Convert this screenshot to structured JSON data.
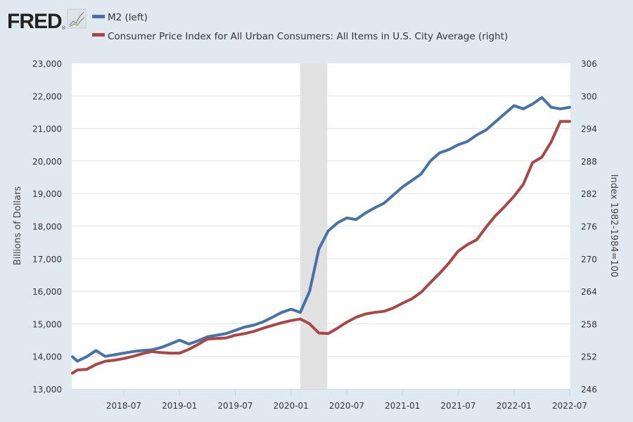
{
  "logo": {
    "text": "FRED",
    "registered": "®"
  },
  "colors": {
    "m2": "#4572a7",
    "cpi": "#aa4643",
    "background": "#e1e9f0",
    "plot": "#ffffff",
    "grid": "#e6e6e6",
    "recession": "#e1e1e1"
  },
  "chart_data": {
    "type": "line",
    "title": "",
    "legend_position": "top-left",
    "grid": true,
    "xlabel": "",
    "x_ticks": [
      "2018-07",
      "2019-01",
      "2019-07",
      "2020-01",
      "2020-07",
      "2021-01",
      "2021-07",
      "2022-01",
      "2022-07"
    ],
    "xlim": [
      "2018-01",
      "2022-07"
    ],
    "recession": {
      "start": "2020-02",
      "end": "2020-04"
    },
    "left_axis": {
      "label": "Billions of Dollars",
      "ylim": [
        13000,
        23000
      ],
      "ticks": [
        "13,000",
        "14,000",
        "15,000",
        "16,000",
        "17,000",
        "18,000",
        "19,000",
        "20,000",
        "21,000",
        "22,000",
        "23,000"
      ]
    },
    "right_axis": {
      "label": "Index 1982-1984=100",
      "ylim": [
        246,
        306
      ],
      "ticks": [
        "246",
        "252",
        "258",
        "264",
        "270",
        "276",
        "282",
        "288",
        "294",
        "300",
        "306"
      ]
    },
    "series": [
      {
        "name": "M2 (left)",
        "axis": "left",
        "color": "#4572a7",
        "x": [
          "2018-01",
          "2018-02",
          "2018-03",
          "2018-04",
          "2018-05",
          "2018-06",
          "2018-07",
          "2018-08",
          "2018-09",
          "2018-10",
          "2018-11",
          "2018-12",
          "2019-01",
          "2019-02",
          "2019-03",
          "2019-04",
          "2019-05",
          "2019-06",
          "2019-07",
          "2019-08",
          "2019-09",
          "2019-10",
          "2019-11",
          "2019-12",
          "2020-01",
          "2020-02",
          "2020-03",
          "2020-04",
          "2020-05",
          "2020-06",
          "2020-07",
          "2020-08",
          "2020-09",
          "2020-10",
          "2020-11",
          "2020-12",
          "2021-01",
          "2021-02",
          "2021-03",
          "2021-04",
          "2021-05",
          "2021-06",
          "2021-07",
          "2021-08",
          "2021-09",
          "2021-10",
          "2021-11",
          "2021-12",
          "2022-01",
          "2022-02",
          "2022-03",
          "2022-04",
          "2022-05",
          "2022-06",
          "2022-07"
        ],
        "values": [
          13990,
          13850,
          13990,
          14180,
          14000,
          14050,
          14100,
          14150,
          14180,
          14200,
          14270,
          14380,
          14500,
          14380,
          14480,
          14600,
          14650,
          14700,
          14800,
          14900,
          14960,
          15060,
          15200,
          15350,
          15450,
          15350,
          16000,
          17300,
          17850,
          18100,
          18250,
          18200,
          18400,
          18560,
          18700,
          18950,
          19200,
          19400,
          19600,
          20000,
          20250,
          20350,
          20500,
          20600,
          20800,
          20950,
          21200,
          21450,
          21700,
          21600,
          21750,
          21950,
          21650,
          21600,
          21650
        ]
      },
      {
        "name": "Consumer Price Index for All Urban Consumers: All Items in U.S. City Average (right)",
        "axis": "right",
        "color": "#aa4643",
        "x": [
          "2018-01",
          "2018-02",
          "2018-03",
          "2018-04",
          "2018-05",
          "2018-06",
          "2018-07",
          "2018-08",
          "2018-09",
          "2018-10",
          "2018-11",
          "2018-12",
          "2019-01",
          "2019-02",
          "2019-03",
          "2019-04",
          "2019-05",
          "2019-06",
          "2019-07",
          "2019-08",
          "2019-09",
          "2019-10",
          "2019-11",
          "2019-12",
          "2020-01",
          "2020-02",
          "2020-03",
          "2020-04",
          "2020-05",
          "2020-06",
          "2020-07",
          "2020-08",
          "2020-09",
          "2020-10",
          "2020-11",
          "2020-12",
          "2021-01",
          "2021-02",
          "2021-03",
          "2021-04",
          "2021-05",
          "2021-06",
          "2021-07",
          "2021-08",
          "2021-09",
          "2021-10",
          "2021-11",
          "2021-12",
          "2022-01",
          "2022-02",
          "2022-03",
          "2022-04",
          "2022-05",
          "2022-06",
          "2022-07"
        ],
        "values": [
          248.9,
          249.5,
          249.6,
          250.5,
          251.1,
          251.3,
          251.6,
          252.0,
          252.5,
          252.9,
          252.7,
          252.6,
          252.6,
          253.3,
          254.2,
          255.2,
          255.3,
          255.4,
          255.9,
          256.2,
          256.6,
          257.2,
          257.7,
          258.2,
          258.6,
          258.9,
          258.0,
          256.3,
          256.2,
          257.2,
          258.3,
          259.2,
          259.8,
          260.1,
          260.3,
          260.9,
          261.8,
          262.6,
          263.8,
          265.6,
          267.3,
          269.2,
          271.4,
          272.6,
          273.5,
          275.8,
          277.9,
          279.6,
          281.5,
          283.7,
          287.7,
          288.7,
          291.5,
          295.3,
          295.3
        ]
      }
    ]
  }
}
